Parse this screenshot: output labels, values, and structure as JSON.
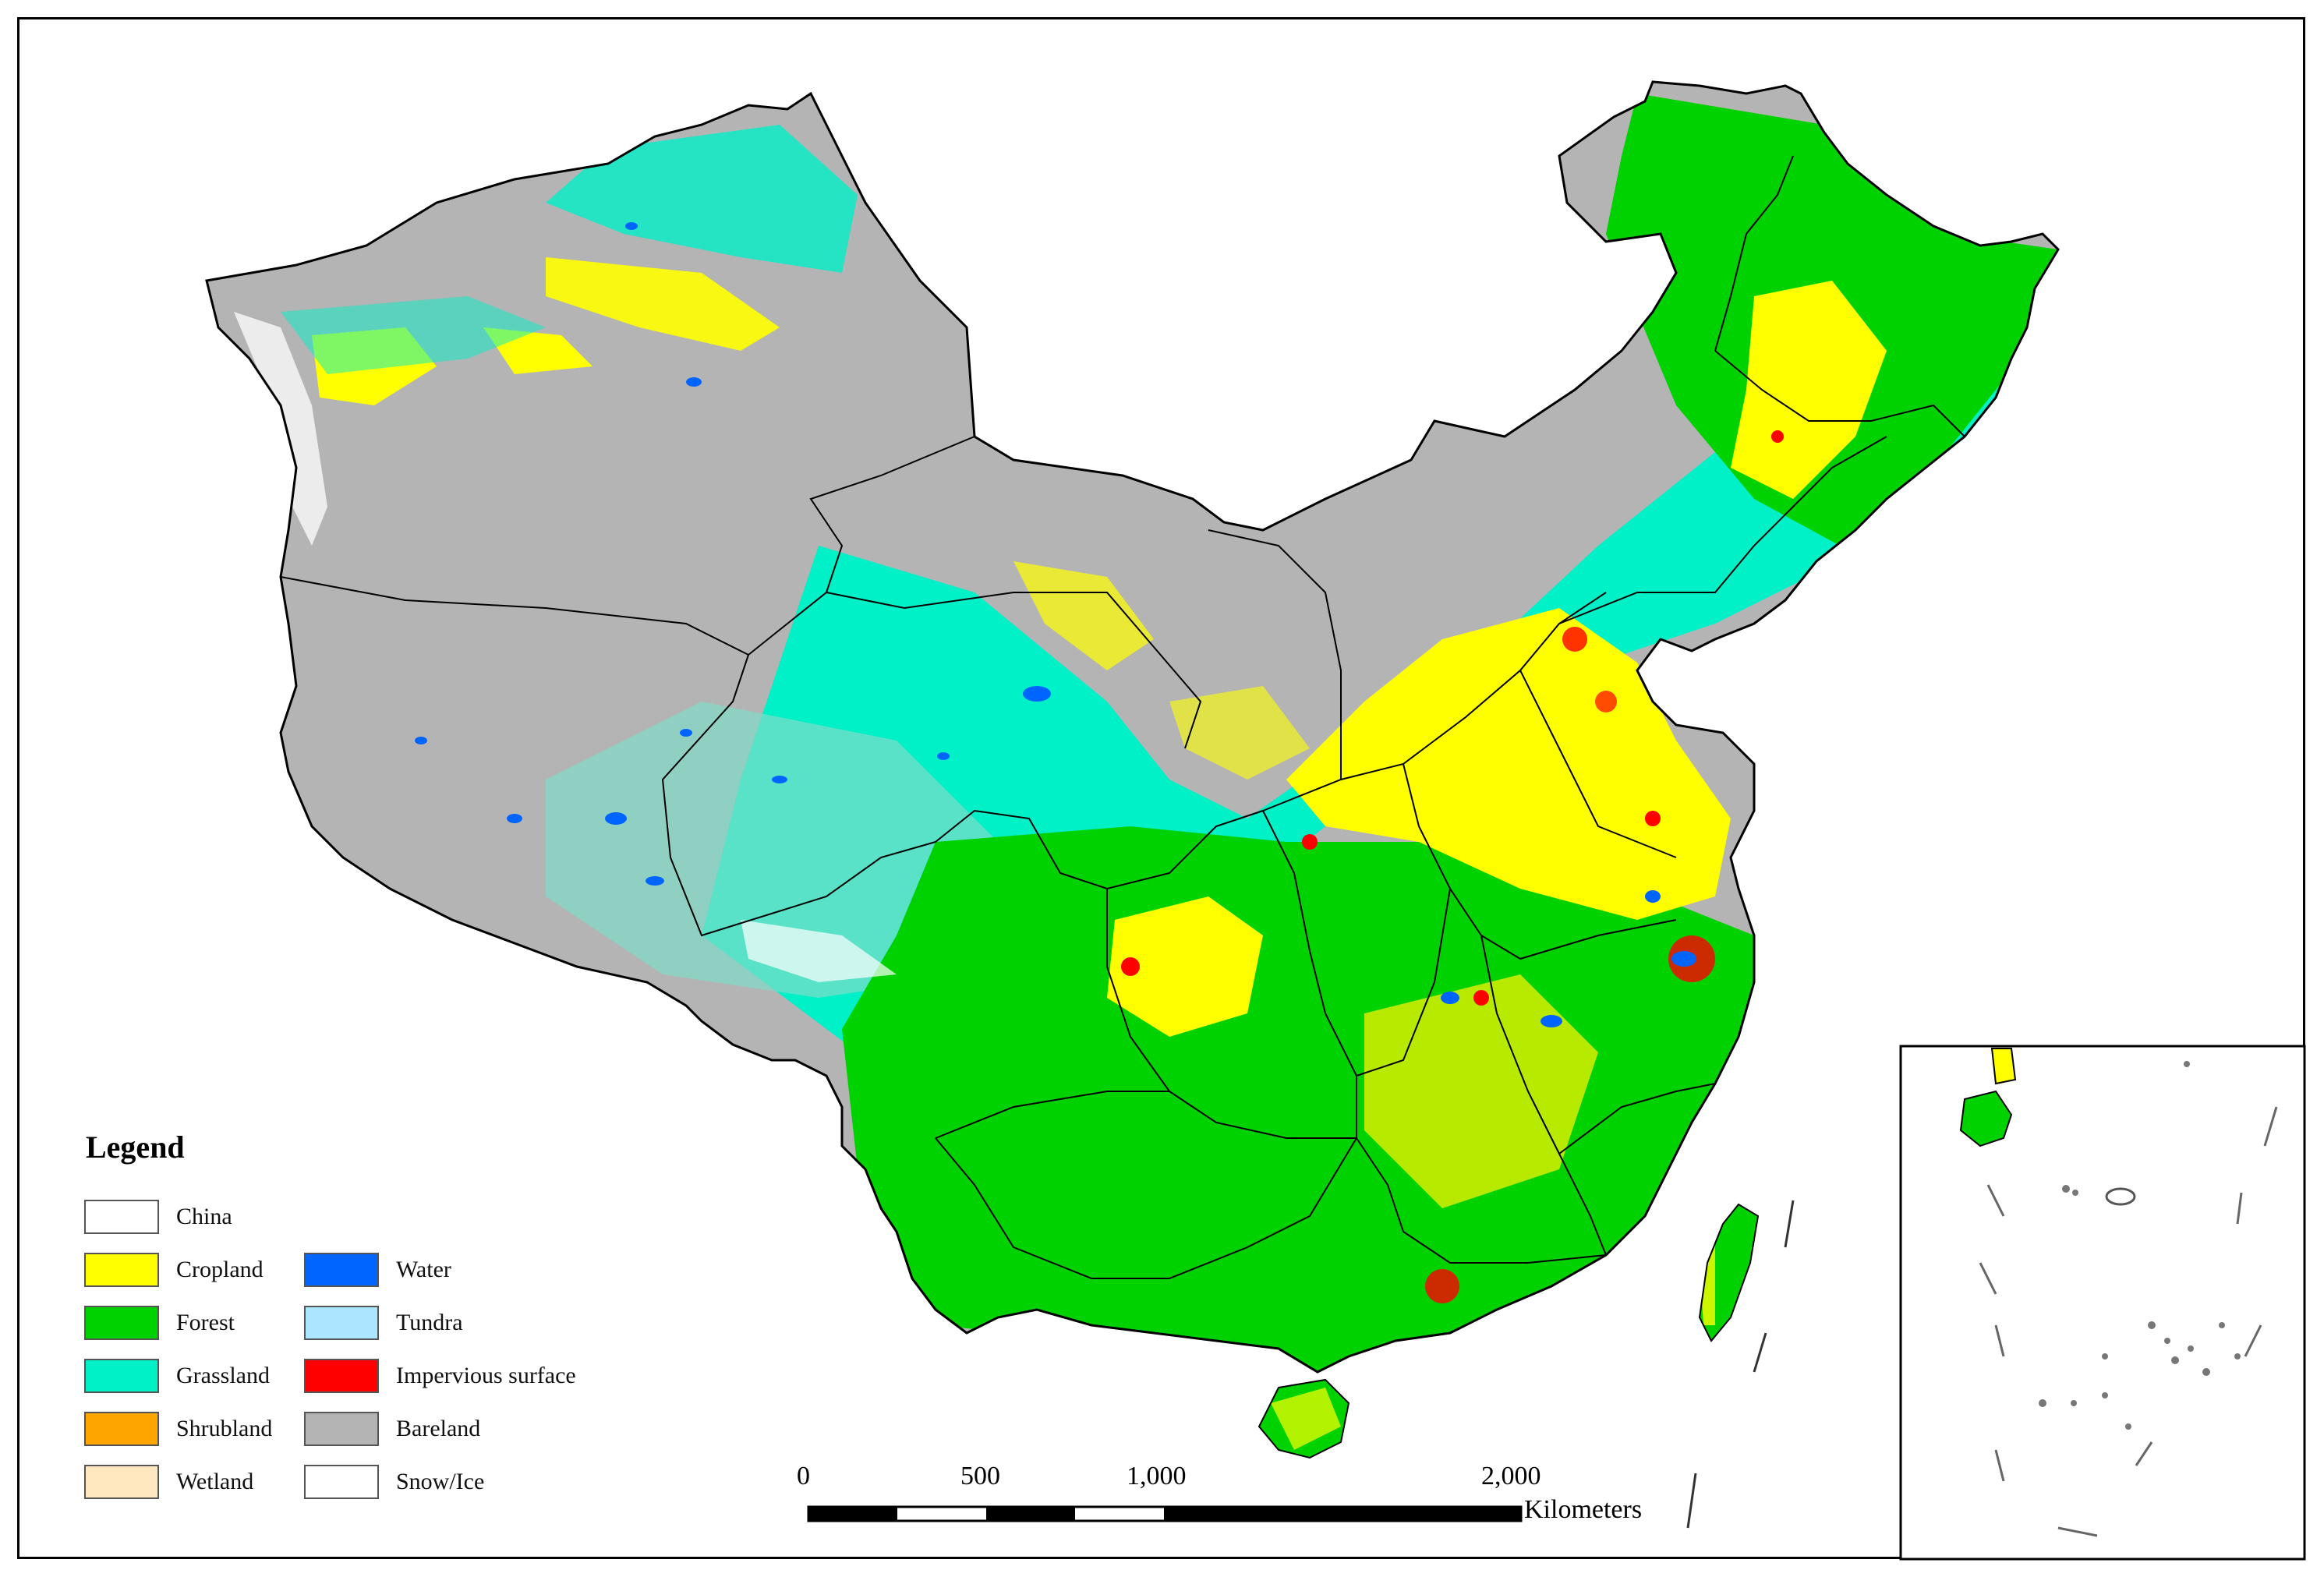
{
  "legend": {
    "title": "Legend",
    "items": [
      {
        "label": "China",
        "color": "#ffffff"
      },
      {
        "label": "Cropland",
        "color": "#ffff00"
      },
      {
        "label": "Forest",
        "color": "#00d200"
      },
      {
        "label": "Grassland",
        "color": "#00f0c8"
      },
      {
        "label": "Shrubland",
        "color": "#ffa500"
      },
      {
        "label": "Wetland",
        "color": "#ffe8c0"
      },
      {
        "label": "Water",
        "color": "#0064ff"
      },
      {
        "label": "Tundra",
        "color": "#aae6ff"
      },
      {
        "label": "Impervious surface",
        "color": "#ff0000"
      },
      {
        "label": "Bareland",
        "color": "#b4b4b4"
      },
      {
        "label": "Snow/Ice",
        "color": "#ffffff"
      }
    ]
  },
  "scale_bar": {
    "ticks": [
      "0",
      "500",
      "1,000",
      "2,000"
    ],
    "unit": "Kilometers"
  },
  "colors": {
    "cropland": "#ffff00",
    "forest": "#00d200",
    "grassland": "#00f0c8",
    "water": "#0064ff",
    "impervious": "#ff0000",
    "bareland": "#b4b4b4",
    "snow": "#ffffff",
    "border": "#000000"
  }
}
